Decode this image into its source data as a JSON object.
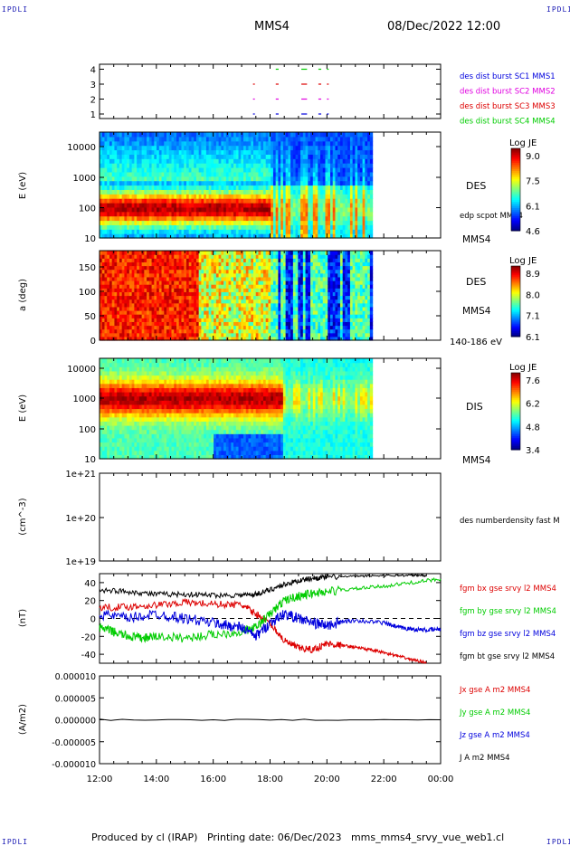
{
  "corners": {
    "tl": "IPDLI",
    "tr": "IPDLI",
    "bl": "IPDLI",
    "br": "IPDLI"
  },
  "header": {
    "spacecraft": "MMS4",
    "date_time": "08/Dec/2022 12:00"
  },
  "footer": {
    "text": "Produced by cl (IRAP)   Printing date: 06/Dec/2023   mms_mms4_srvy_vue_web1.cl"
  },
  "colors": {
    "mms1": "#0000dd",
    "mms2": "#e000e0",
    "mms3": "#dd0000",
    "mms4": "#00cc00",
    "bt": "#000000"
  },
  "time_axis": {
    "labels": [
      "12:00",
      "14:00",
      "16:00",
      "18:00",
      "20:00",
      "22:00",
      "00:00"
    ]
  },
  "chart_data": [
    {
      "id": "availability",
      "type": "scatter",
      "ylabel": "",
      "yticks": [
        "1",
        "2",
        "3",
        "4"
      ],
      "legend": [
        {
          "label": "des dist burst SC1 MMS1",
          "color": "#0000dd"
        },
        {
          "label": "des dist burst SC2 MMS2",
          "color": "#e000e0"
        },
        {
          "label": "des dist burst SC3 MMS3",
          "color": "#dd0000"
        },
        {
          "label": "des dist burst SC4 MMS4",
          "color": "#00cc00"
        }
      ],
      "series": [
        {
          "name": "des dist burst SC1 MMS1",
          "level": 1,
          "color": "#0000dd",
          "intervals": [
            [
              17.4,
              17.42
            ],
            [
              18.2,
              18.3
            ],
            [
              19.1,
              19.3
            ],
            [
              19.7,
              19.8
            ],
            [
              20.0,
              20.06
            ]
          ]
        },
        {
          "name": "des dist burst SC2 MMS2",
          "level": 2,
          "color": "#e000e0",
          "intervals": [
            [
              17.4,
              17.42
            ],
            [
              18.2,
              18.3
            ],
            [
              19.1,
              19.3
            ],
            [
              19.7,
              19.8
            ],
            [
              20.0,
              20.06
            ]
          ]
        },
        {
          "name": "des dist burst SC3 MMS3",
          "level": 3,
          "color": "#dd0000",
          "intervals": [
            [
              17.4,
              17.42
            ],
            [
              18.2,
              18.3
            ],
            [
              19.1,
              19.3
            ],
            [
              19.7,
              19.8
            ],
            [
              20.0,
              20.06
            ]
          ]
        },
        {
          "name": "des dist burst SC4 MMS4",
          "level": 4,
          "color": "#00cc00",
          "intervals": [
            [
              18.2,
              18.3
            ],
            [
              19.1,
              19.3
            ],
            [
              19.7,
              19.8
            ],
            [
              20.0,
              20.06
            ]
          ]
        }
      ]
    },
    {
      "id": "des_energy",
      "type": "heatmap",
      "ylabel": "E (eV)",
      "yticks": [
        "10",
        "100",
        "1000",
        "10000"
      ],
      "ylim": [
        10,
        30000
      ],
      "ylog": true,
      "label": "DES",
      "side_label": "edp scpot MMS4",
      "sc_label": "MMS4",
      "colorbar": {
        "title": "Log JE",
        "ticks": [
          "9.0",
          "7.5",
          "6.1",
          "4.6"
        ]
      },
      "data_end_hour": 21.6
    },
    {
      "id": "des_pitch",
      "type": "heatmap",
      "ylabel": "a (deg)",
      "yticks": [
        "0",
        "50",
        "100",
        "150"
      ],
      "ylim": [
        0,
        180
      ],
      "label": "DES",
      "sc_label": "MMS4",
      "energy_label": "140-186 eV",
      "colorbar": {
        "title": "Log JE",
        "ticks": [
          "8.9",
          "8.0",
          "7.1",
          "6.1"
        ]
      },
      "data_end_hour": 21.6
    },
    {
      "id": "dis_energy",
      "type": "heatmap",
      "ylabel": "E (eV)",
      "yticks": [
        "10",
        "100",
        "1000",
        "10000"
      ],
      "ylim": [
        10,
        20000
      ],
      "ylog": true,
      "label": "DIS",
      "sc_label": "MMS4",
      "colorbar": {
        "title": "Log JE",
        "ticks": [
          "7.6",
          "6.2",
          "4.8",
          "3.4"
        ]
      },
      "data_end_hour": 21.6
    },
    {
      "id": "density",
      "type": "line",
      "ylabel": "(cm^-3)",
      "yticks": [
        "1e+19",
        "1e+20",
        "1e+21"
      ],
      "ylim": [
        1e+19,
        1e+21
      ],
      "ylog": true,
      "legend": [
        {
          "label": "des numberdensity fast M",
          "color": "#000000"
        }
      ],
      "series": []
    },
    {
      "id": "fgm",
      "type": "line",
      "ylabel": "(nT)",
      "yticks": [
        "-40",
        "-20",
        "0",
        "20",
        "40"
      ],
      "ylim": [
        -50,
        50
      ],
      "legend": [
        {
          "label": "fgm bx gse srvy l2 MMS4",
          "color": "#dd0000"
        },
        {
          "label": "fgm by gse srvy l2 MMS4",
          "color": "#00cc00"
        },
        {
          "label": "fgm bz gse srvy l2 MMS4",
          "color": "#0000dd"
        },
        {
          "label": "fgm bt gse srvy l2 MMS4",
          "color": "#000000"
        }
      ],
      "series": [
        {
          "name": "fgm bx gse srvy l2 MMS4",
          "color": "#dd0000",
          "x": [
            12.0,
            13.0,
            14.0,
            15.0,
            16.0,
            17.0,
            17.5,
            18.0,
            18.5,
            19.0,
            19.5,
            20.0,
            20.5,
            21.0,
            21.5,
            22.0,
            22.5,
            23.0,
            23.5
          ],
          "y": [
            12,
            13,
            15,
            18,
            16,
            15,
            5,
            -5,
            -25,
            -33,
            -35,
            -28,
            -30,
            -32,
            -35,
            -38,
            -42,
            -46,
            -49
          ]
        },
        {
          "name": "fgm by gse srvy l2 MMS4",
          "color": "#00cc00",
          "x": [
            12.0,
            12.5,
            13.0,
            13.5,
            14.0,
            15.0,
            16.0,
            17.0,
            17.5,
            18.0,
            18.5,
            19.0,
            19.5,
            20.0,
            21.0,
            22.0,
            23.0,
            24.0
          ],
          "y": [
            -10,
            -15,
            -20,
            -22,
            -20,
            -22,
            -18,
            -15,
            -10,
            5,
            20,
            25,
            28,
            30,
            33,
            36,
            40,
            44
          ]
        },
        {
          "name": "fgm bz gse srvy l2 MMS4",
          "color": "#0000dd",
          "x": [
            12.0,
            13.0,
            14.0,
            15.0,
            16.0,
            16.5,
            17.0,
            17.5,
            18.0,
            18.5,
            19.0,
            19.5,
            20.0,
            20.5,
            21.0,
            22.0,
            22.5,
            23.0,
            23.5,
            24.0
          ],
          "y": [
            5,
            0,
            5,
            0,
            -5,
            -8,
            -10,
            -20,
            -5,
            5,
            0,
            -5,
            -8,
            -4,
            -2,
            -5,
            -10,
            -12,
            -13,
            -12
          ]
        },
        {
          "name": "fgm bt gse srvy l2 MMS4",
          "color": "#000000",
          "x": [
            12.0,
            13.0,
            14.0,
            15.0,
            16.0,
            17.0,
            17.5,
            18.0,
            18.5,
            19.0,
            19.5,
            20.0,
            21.0,
            22.0,
            23.0,
            23.5
          ],
          "y": [
            32,
            30,
            27,
            27,
            26,
            26,
            27,
            32,
            38,
            42,
            45,
            46,
            47,
            48,
            48,
            48
          ]
        }
      ]
    },
    {
      "id": "current",
      "type": "line",
      "ylabel": "(A/m2)",
      "yticks": [
        "-0.000010",
        "-0.000005",
        "0.000000",
        "0.000005",
        "0.000010"
      ],
      "ylim": [
        -1e-05,
        1e-05
      ],
      "legend": [
        {
          "label": "Jx gse A m2 MMS4",
          "color": "#dd0000"
        },
        {
          "label": "Jy gse A m2 MMS4",
          "color": "#00cc00"
        },
        {
          "label": "Jz gse A m2 MMS4",
          "color": "#0000dd"
        },
        {
          "label": "J A m2 MMS4",
          "color": "#000000"
        }
      ],
      "series": [
        {
          "name": "J A m2 MMS4",
          "color": "#000000",
          "x": [
            12,
            24
          ],
          "y": [
            0,
            0
          ]
        }
      ]
    }
  ]
}
